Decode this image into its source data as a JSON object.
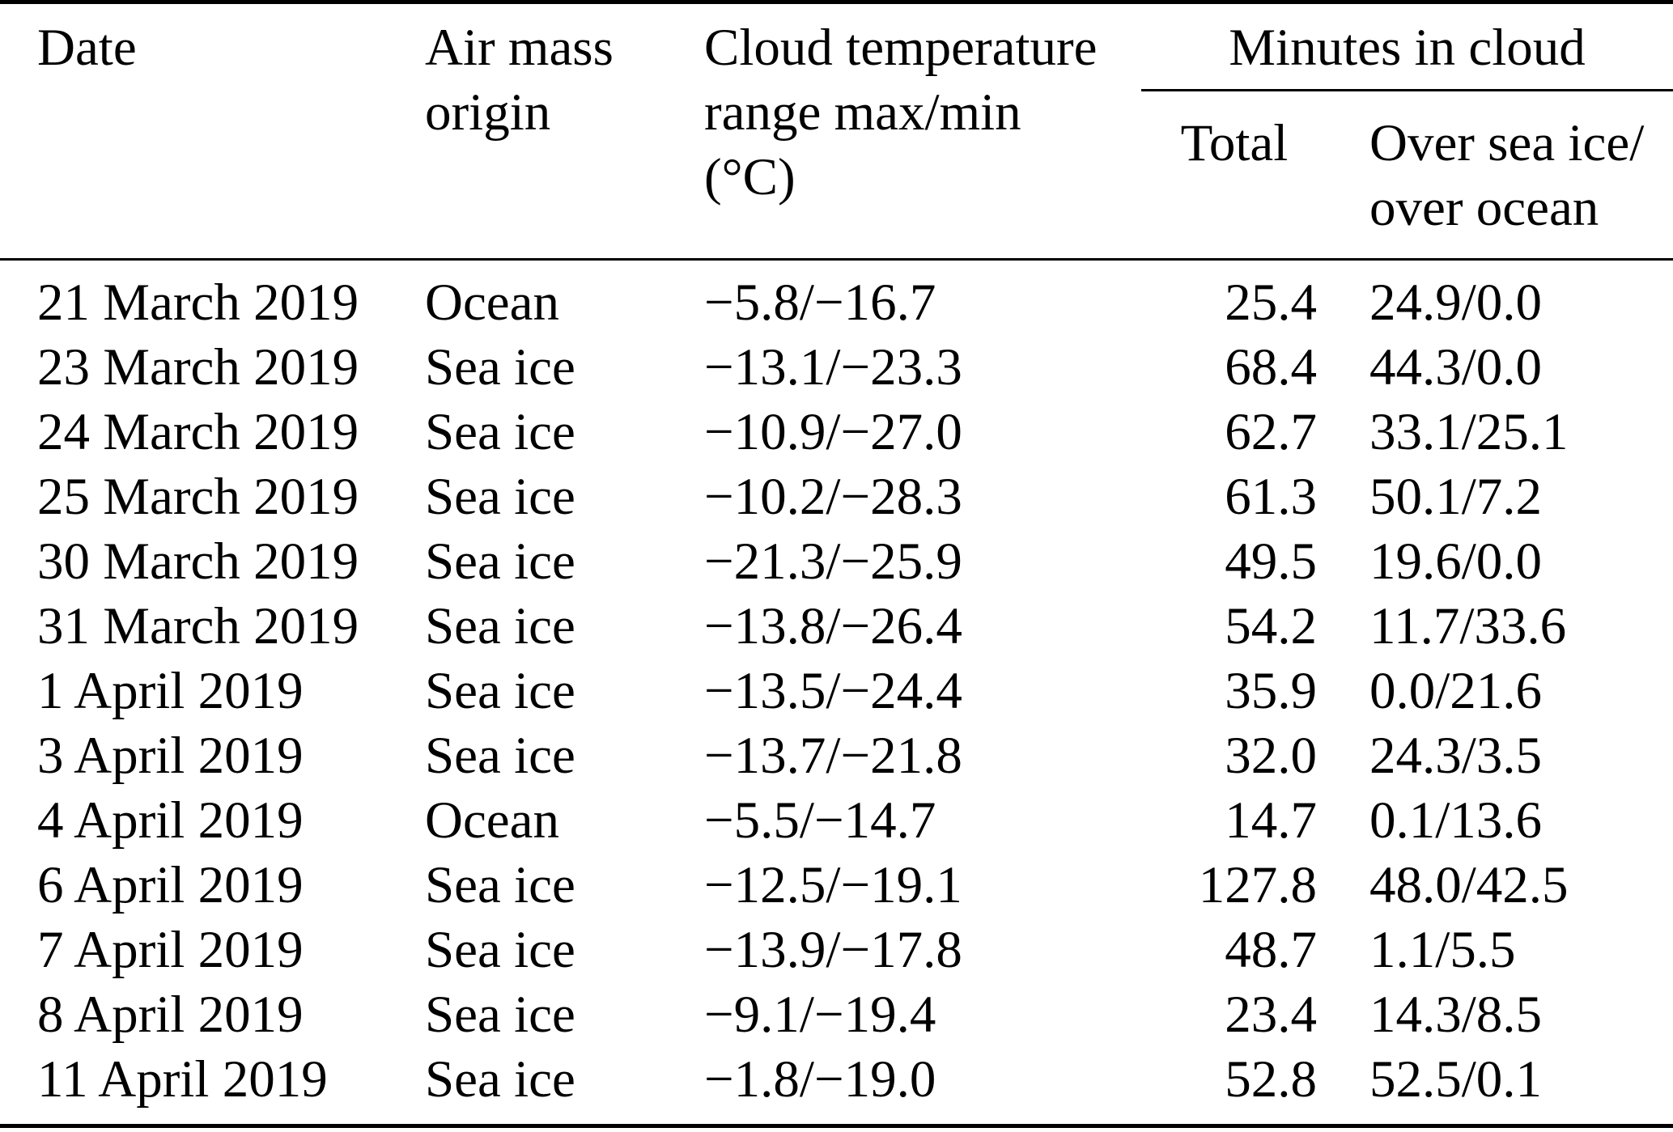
{
  "colors": {
    "text": "#000000",
    "background": "#ffffff",
    "rule": "#000000"
  },
  "table": {
    "header": {
      "date": "Date",
      "air_mass_origin": "Air mass\norigin",
      "cloud_temp_range": "Cloud temperature\nrange max/min\n(°C)",
      "minutes_in_cloud_group": "Minutes in cloud",
      "total": "Total",
      "over_sea_ice_over_ocean": "Over sea ice/\nover ocean"
    },
    "rows": [
      {
        "date": "21 March 2019",
        "origin": "Ocean",
        "temp_range": "−5.8/−16.7",
        "total": "25.4",
        "over_split": "24.9/0.0"
      },
      {
        "date": "23 March 2019",
        "origin": "Sea ice",
        "temp_range": "−13.1/−23.3",
        "total": "68.4",
        "over_split": "44.3/0.0"
      },
      {
        "date": "24 March 2019",
        "origin": "Sea ice",
        "temp_range": "−10.9/−27.0",
        "total": "62.7",
        "over_split": "33.1/25.1"
      },
      {
        "date": "25 March 2019",
        "origin": "Sea ice",
        "temp_range": "−10.2/−28.3",
        "total": "61.3",
        "over_split": "50.1/7.2"
      },
      {
        "date": "30 March 2019",
        "origin": "Sea ice",
        "temp_range": "−21.3/−25.9",
        "total": "49.5",
        "over_split": "19.6/0.0"
      },
      {
        "date": "31 March 2019",
        "origin": "Sea ice",
        "temp_range": "−13.8/−26.4",
        "total": "54.2",
        "over_split": "11.7/33.6"
      },
      {
        "date": "1 April 2019",
        "origin": "Sea ice",
        "temp_range": "−13.5/−24.4",
        "total": "35.9",
        "over_split": "0.0/21.6"
      },
      {
        "date": "3 April 2019",
        "origin": "Sea ice",
        "temp_range": "−13.7/−21.8",
        "total": "32.0",
        "over_split": "24.3/3.5"
      },
      {
        "date": "4 April 2019",
        "origin": "Ocean",
        "temp_range": "−5.5/−14.7",
        "total": "14.7",
        "over_split": "0.1/13.6"
      },
      {
        "date": "6 April 2019",
        "origin": "Sea ice",
        "temp_range": "−12.5/−19.1",
        "total": "127.8",
        "over_split": "48.0/42.5"
      },
      {
        "date": "7 April 2019",
        "origin": "Sea ice",
        "temp_range": "−13.9/−17.8",
        "total": "48.7",
        "over_split": "1.1/5.5"
      },
      {
        "date": "8 April 2019",
        "origin": "Sea ice",
        "temp_range": "−9.1/−19.4",
        "total": "23.4",
        "over_split": "14.3/8.5"
      },
      {
        "date": "11 April 2019",
        "origin": "Sea ice",
        "temp_range": "−1.8/−19.0",
        "total": "52.8",
        "over_split": "52.5/0.1"
      }
    ]
  }
}
